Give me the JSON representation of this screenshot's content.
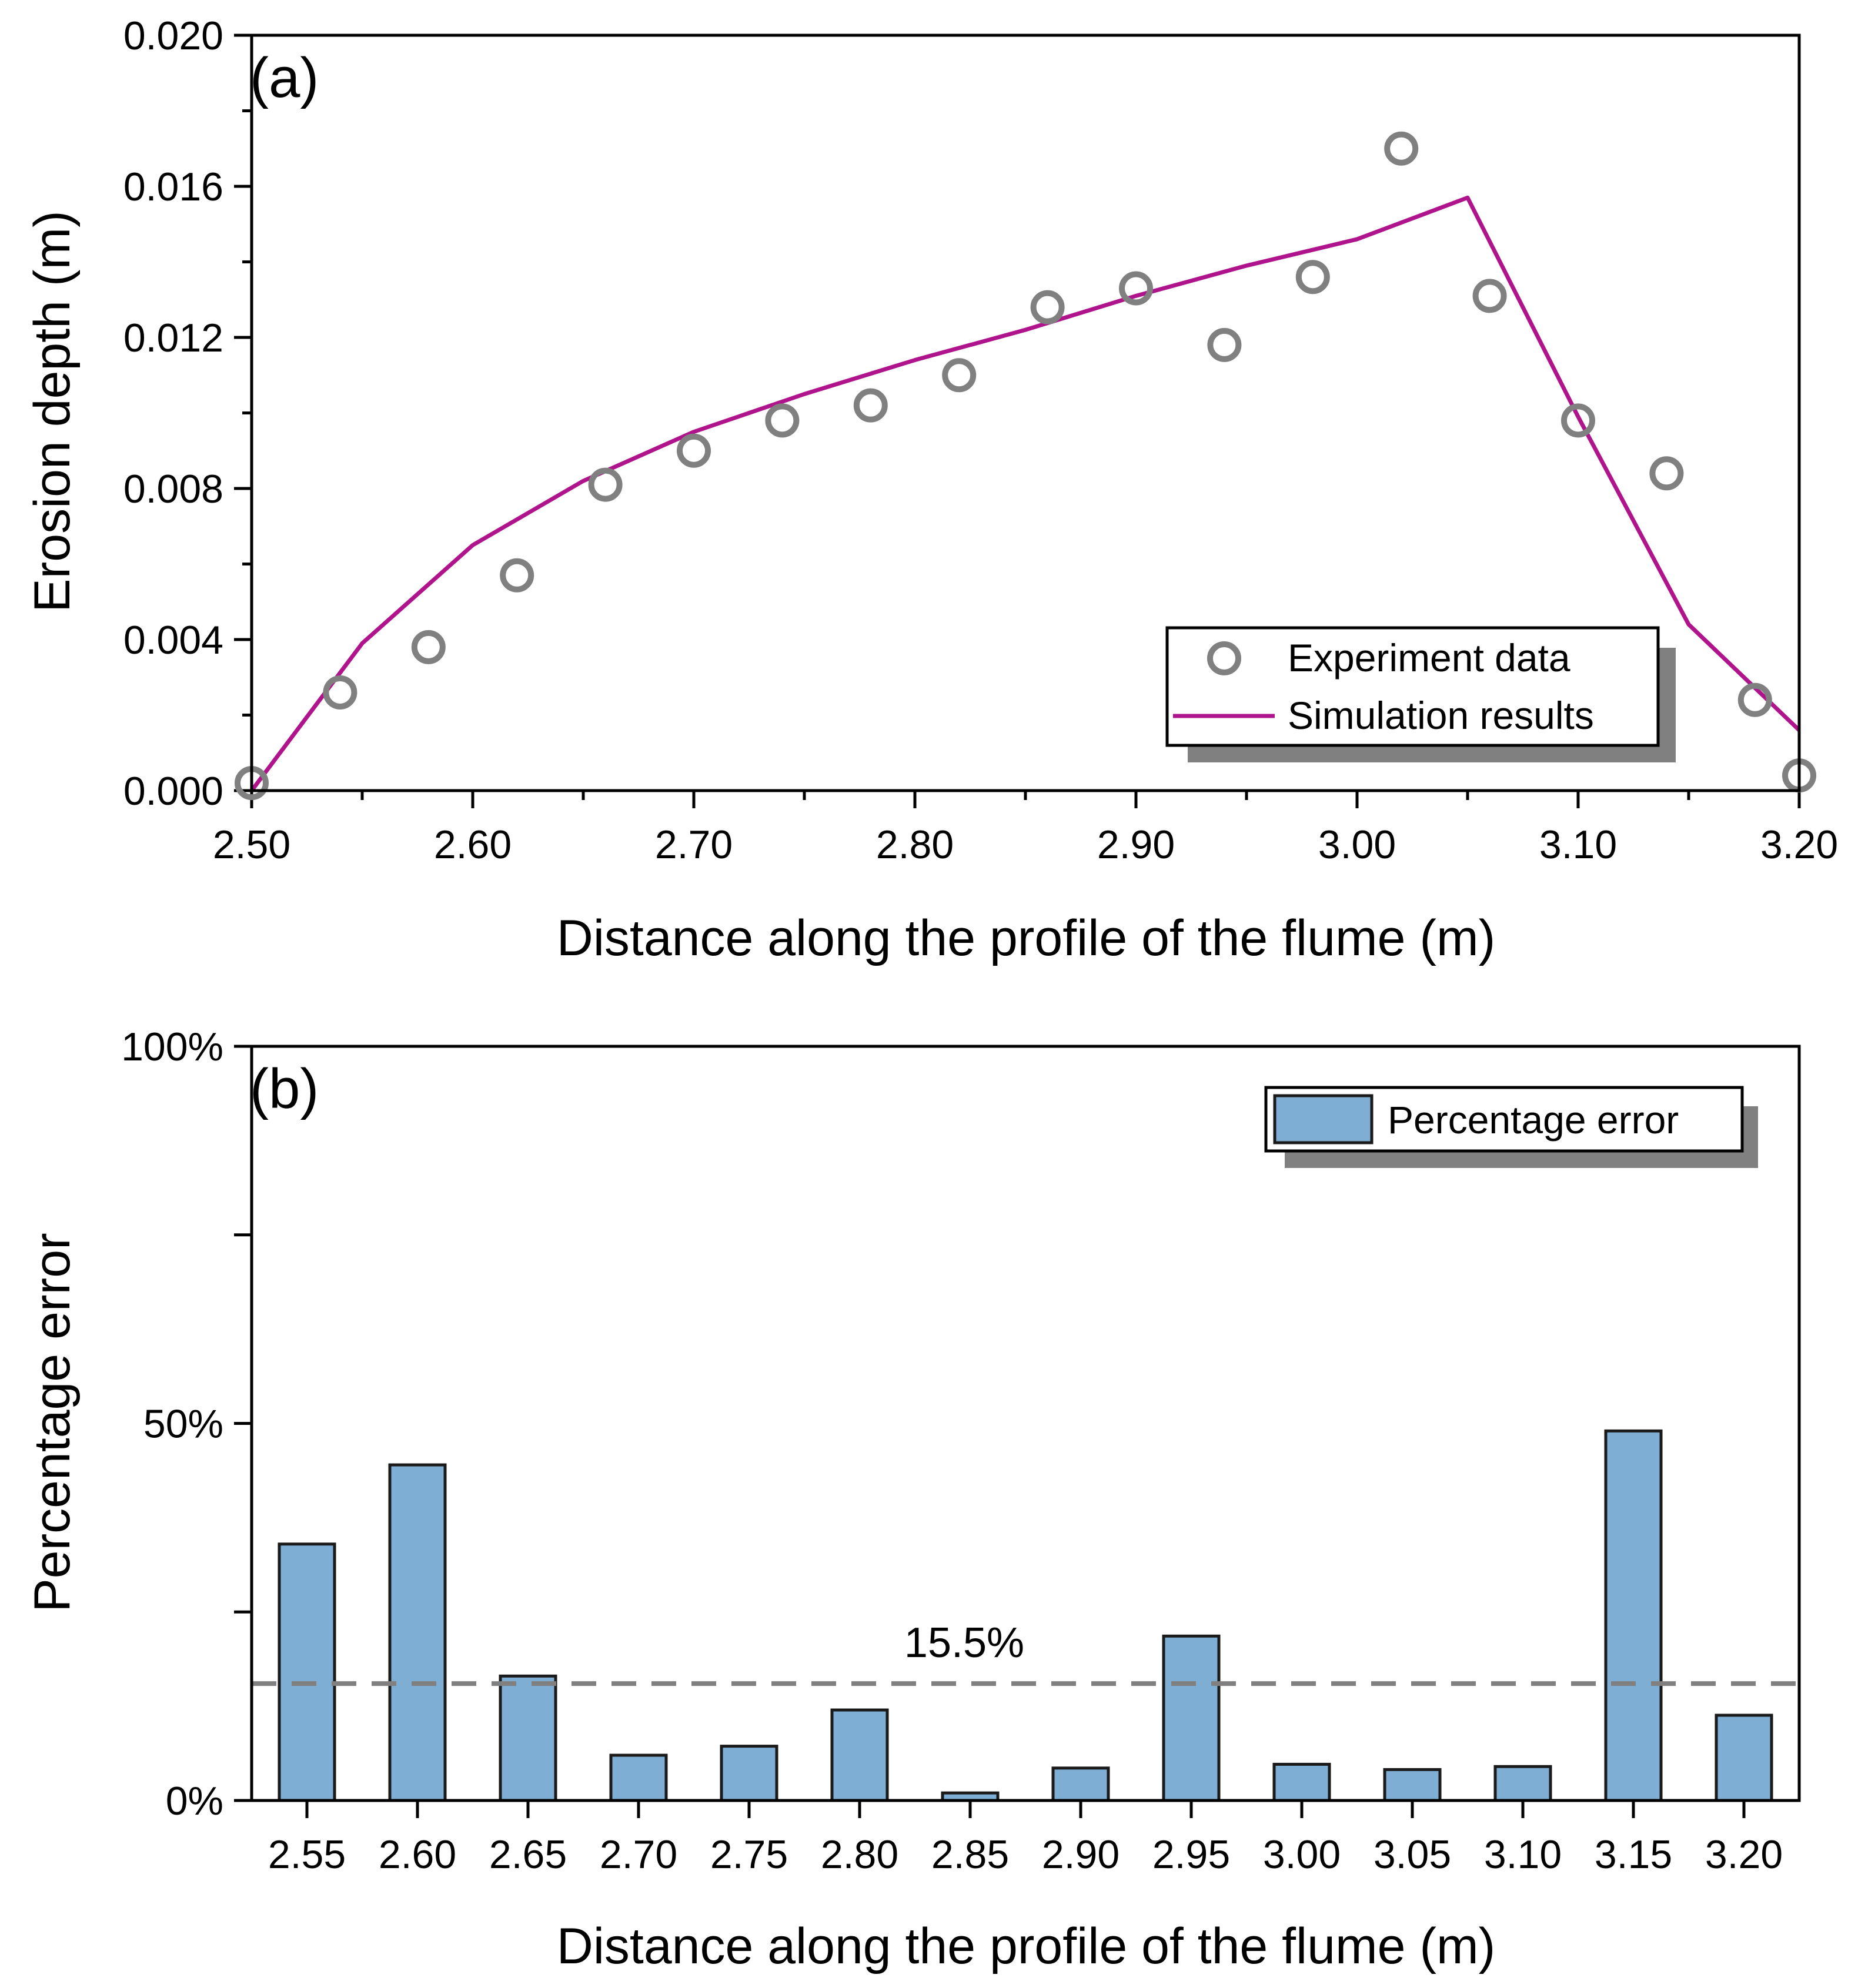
{
  "colors": {
    "scatter": "#808080",
    "line": "#B0148C",
    "bar_fill": "#7FAED4",
    "bar_stroke": "#1a1a1a",
    "mean_line": "#808080",
    "shadow": "#808080"
  },
  "chart_data": [
    {
      "type": "scatter+line",
      "panel_label": "(a)",
      "title": "",
      "xlabel": "Distance along the profile of the flume (m)",
      "ylabel": "Erosion depth (m)",
      "xlim": [
        2.5,
        3.2
      ],
      "ylim": [
        0.0,
        0.02
      ],
      "xticks": [
        2.5,
        2.6,
        2.7,
        2.8,
        2.9,
        3.0,
        3.1,
        3.2
      ],
      "xtick_labels": [
        "2.50",
        "2.60",
        "2.70",
        "2.80",
        "2.90",
        "3.00",
        "3.10",
        "3.20"
      ],
      "yticks": [
        0.0,
        0.004,
        0.008,
        0.012,
        0.016,
        0.02
      ],
      "ytick_labels": [
        "0.000",
        "0.004",
        "0.008",
        "0.012",
        "0.016",
        "0.020"
      ],
      "legend_position": "bottom-right",
      "series": [
        {
          "name": "Experiment data",
          "kind": "scatter",
          "x": [
            2.5,
            2.54,
            2.58,
            2.62,
            2.66,
            2.7,
            2.74,
            2.78,
            2.82,
            2.86,
            2.9,
            2.94,
            2.98,
            3.02,
            3.06,
            3.1,
            3.14,
            3.18,
            3.2
          ],
          "y": [
            0.0002,
            0.0026,
            0.0038,
            0.0057,
            0.0081,
            0.009,
            0.0098,
            0.0102,
            0.011,
            0.0128,
            0.0133,
            0.0118,
            0.0136,
            0.017,
            0.0131,
            0.0098,
            0.0084,
            0.0024,
            0.0004
          ]
        },
        {
          "name": "Simulation results",
          "kind": "line",
          "x": [
            2.5,
            2.55,
            2.6,
            2.65,
            2.7,
            2.75,
            2.8,
            2.85,
            2.9,
            2.95,
            3.0,
            3.05,
            3.1,
            3.15,
            3.2
          ],
          "y": [
            0.0,
            0.0039,
            0.0065,
            0.0082,
            0.0095,
            0.0105,
            0.0114,
            0.0122,
            0.0131,
            0.0139,
            0.0146,
            0.0157,
            0.0099,
            0.0044,
            0.0016
          ]
        }
      ]
    },
    {
      "type": "bar",
      "panel_label": "(b)",
      "title": "",
      "xlabel": "Distance along the profile of the flume (m)",
      "ylabel": "Percentage error",
      "categories": [
        "2.55",
        "2.60",
        "2.65",
        "2.70",
        "2.75",
        "2.80",
        "2.85",
        "2.90",
        "2.95",
        "3.00",
        "3.05",
        "3.10",
        "3.15",
        "3.20"
      ],
      "series": [
        {
          "name": "Percentage error",
          "values": [
            34,
            44.5,
            16.5,
            6,
            7.2,
            12,
            1,
            4.3,
            21.8,
            4.8,
            4.1,
            4.5,
            49,
            11.3
          ]
        }
      ],
      "ylim": [
        0,
        100
      ],
      "yticks": [
        0,
        25,
        50,
        75,
        100
      ],
      "ytick_labels": [
        "0%",
        "",
        "50%",
        "",
        "100%"
      ],
      "reference_line": {
        "value": 15.5,
        "label": "15.5%"
      },
      "legend_position": "top-right"
    }
  ]
}
